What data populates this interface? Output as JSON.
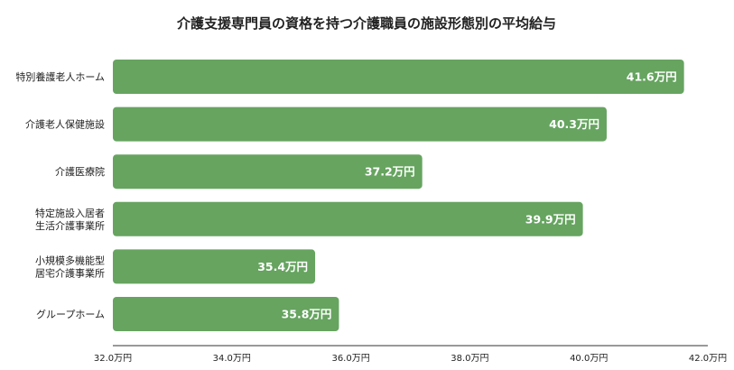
{
  "chart_data": {
    "type": "bar",
    "orientation": "horizontal",
    "title": "介護支援専門員の資格を持つ介護職員の施設形態別の平均給与",
    "categories": [
      [
        "特別養護老人ホーム"
      ],
      [
        "介護老人保健施設"
      ],
      [
        "介護医療院"
      ],
      [
        "特定施設入居者",
        "生活介護事業所"
      ],
      [
        "小規模多機能型",
        "居宅介護事業所"
      ],
      [
        "グループホーム"
      ]
    ],
    "values": [
      41.6,
      40.3,
      37.2,
      39.9,
      35.4,
      35.8
    ],
    "value_labels": [
      "41.6万円",
      "40.3万円",
      "37.2万円",
      "39.9万円",
      "35.4万円",
      "35.8万円"
    ],
    "xlim": [
      32.0,
      42.0
    ],
    "xticks": [
      32.0,
      34.0,
      36.0,
      38.0,
      40.0,
      42.0
    ],
    "xtick_labels": [
      "32.0万円",
      "34.0万円",
      "36.0万円",
      "38.0万円",
      "40.0万円",
      "42.0万円"
    ],
    "bar_color": "#66a460",
    "grid": false,
    "legend": "none"
  }
}
